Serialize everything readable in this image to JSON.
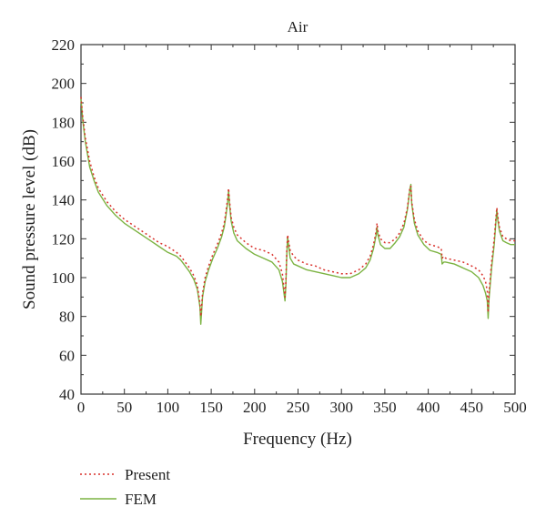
{
  "chart_data": {
    "type": "line",
    "title": "Air",
    "xlabel": "Frequency (Hz)",
    "ylabel": "Sound pressure level (dB)",
    "xlim": [
      0,
      500
    ],
    "ylim": [
      40,
      220
    ],
    "x_ticks": [
      0,
      50,
      100,
      150,
      200,
      250,
      300,
      350,
      400,
      450,
      500
    ],
    "y_ticks": [
      40,
      60,
      80,
      100,
      120,
      140,
      160,
      180,
      200,
      220
    ],
    "grid": false,
    "legend_position": "bottom-left, below plot",
    "series": [
      {
        "name": "Present",
        "style": "dotted",
        "color": "#d9302a",
        "points": [
          [
            0,
            193
          ],
          [
            2,
            183
          ],
          [
            5,
            172
          ],
          [
            10,
            160
          ],
          [
            15,
            152
          ],
          [
            20,
            146
          ],
          [
            30,
            139
          ],
          [
            40,
            134
          ],
          [
            50,
            130
          ],
          [
            60,
            127
          ],
          [
            70,
            124
          ],
          [
            80,
            121
          ],
          [
            90,
            118
          ],
          [
            100,
            116
          ],
          [
            110,
            113
          ],
          [
            115,
            111
          ],
          [
            120,
            108
          ],
          [
            125,
            105
          ],
          [
            130,
            101
          ],
          [
            134,
            96
          ],
          [
            137,
            87
          ],
          [
            138,
            80
          ],
          [
            139,
            85
          ],
          [
            140,
            92
          ],
          [
            143,
            100
          ],
          [
            147,
            106
          ],
          [
            152,
            112
          ],
          [
            157,
            117
          ],
          [
            162,
            123
          ],
          [
            165,
            128
          ],
          [
            167,
            134
          ],
          [
            169,
            141
          ],
          [
            170,
            146
          ],
          [
            171,
            140
          ],
          [
            173,
            131
          ],
          [
            176,
            126
          ],
          [
            180,
            122
          ],
          [
            190,
            118
          ],
          [
            200,
            115
          ],
          [
            210,
            114
          ],
          [
            220,
            112
          ],
          [
            228,
            108
          ],
          [
            232,
            102
          ],
          [
            235,
            90
          ],
          [
            236,
            98
          ],
          [
            237,
            113
          ],
          [
            238,
            122
          ],
          [
            239,
            119
          ],
          [
            241,
            114
          ],
          [
            245,
            111
          ],
          [
            250,
            109
          ],
          [
            260,
            107
          ],
          [
            270,
            106
          ],
          [
            280,
            104
          ],
          [
            290,
            103
          ],
          [
            300,
            102
          ],
          [
            310,
            102
          ],
          [
            320,
            104
          ],
          [
            328,
            107
          ],
          [
            333,
            111
          ],
          [
            337,
            117
          ],
          [
            340,
            124
          ],
          [
            341,
            128
          ],
          [
            342,
            124
          ],
          [
            345,
            120
          ],
          [
            350,
            118
          ],
          [
            356,
            118
          ],
          [
            362,
            120
          ],
          [
            367,
            123
          ],
          [
            372,
            128
          ],
          [
            376,
            136
          ],
          [
            379,
            147
          ],
          [
            380,
            147
          ],
          [
            381,
            139
          ],
          [
            384,
            130
          ],
          [
            388,
            124
          ],
          [
            395,
            119
          ],
          [
            402,
            117
          ],
          [
            410,
            116
          ],
          [
            415,
            115
          ],
          [
            416,
            110
          ],
          [
            418,
            111
          ],
          [
            420,
            110
          ],
          [
            430,
            109
          ],
          [
            440,
            108
          ],
          [
            450,
            106
          ],
          [
            458,
            104
          ],
          [
            463,
            101
          ],
          [
            466,
            98
          ],
          [
            468,
            93
          ],
          [
            469,
            82
          ],
          [
            470,
            92
          ],
          [
            473,
            108
          ],
          [
            476,
            120
          ],
          [
            478,
            131
          ],
          [
            479,
            136
          ],
          [
            480,
            132
          ],
          [
            482,
            126
          ],
          [
            486,
            121
          ],
          [
            490,
            120
          ],
          [
            495,
            119
          ],
          [
            500,
            119
          ]
        ]
      },
      {
        "name": "FEM",
        "style": "solid",
        "color": "#7cb342",
        "points": [
          [
            0,
            192
          ],
          [
            2,
            181
          ],
          [
            5,
            170
          ],
          [
            10,
            157
          ],
          [
            15,
            150
          ],
          [
            20,
            144
          ],
          [
            30,
            137
          ],
          [
            40,
            132
          ],
          [
            50,
            128
          ],
          [
            60,
            125
          ],
          [
            70,
            122
          ],
          [
            80,
            119
          ],
          [
            90,
            116
          ],
          [
            100,
            113
          ],
          [
            110,
            111
          ],
          [
            115,
            109
          ],
          [
            120,
            106
          ],
          [
            125,
            103
          ],
          [
            130,
            99
          ],
          [
            134,
            94
          ],
          [
            137,
            85
          ],
          [
            138,
            76
          ],
          [
            139,
            83
          ],
          [
            140,
            90
          ],
          [
            143,
            98
          ],
          [
            147,
            104
          ],
          [
            152,
            110
          ],
          [
            157,
            115
          ],
          [
            162,
            121
          ],
          [
            165,
            126
          ],
          [
            167,
            132
          ],
          [
            169,
            139
          ],
          [
            170,
            145
          ],
          [
            171,
            138
          ],
          [
            173,
            129
          ],
          [
            176,
            123
          ],
          [
            180,
            119
          ],
          [
            190,
            115
          ],
          [
            200,
            112
          ],
          [
            210,
            110
          ],
          [
            220,
            108
          ],
          [
            228,
            104
          ],
          [
            232,
            98
          ],
          [
            235,
            88
          ],
          [
            236,
            96
          ],
          [
            237,
            111
          ],
          [
            238,
            121
          ],
          [
            239,
            117
          ],
          [
            241,
            110
          ],
          [
            245,
            107
          ],
          [
            250,
            106
          ],
          [
            260,
            104
          ],
          [
            270,
            103
          ],
          [
            280,
            102
          ],
          [
            290,
            101
          ],
          [
            300,
            100
          ],
          [
            310,
            100
          ],
          [
            320,
            102
          ],
          [
            328,
            105
          ],
          [
            333,
            109
          ],
          [
            337,
            115
          ],
          [
            340,
            122
          ],
          [
            341,
            126
          ],
          [
            342,
            122
          ],
          [
            345,
            117
          ],
          [
            350,
            115
          ],
          [
            356,
            115
          ],
          [
            362,
            118
          ],
          [
            367,
            121
          ],
          [
            372,
            126
          ],
          [
            376,
            135
          ],
          [
            379,
            146
          ],
          [
            380,
            148
          ],
          [
            381,
            138
          ],
          [
            384,
            128
          ],
          [
            388,
            122
          ],
          [
            395,
            117
          ],
          [
            402,
            114
          ],
          [
            410,
            113
          ],
          [
            415,
            112
          ],
          [
            416,
            107
          ],
          [
            418,
            108
          ],
          [
            420,
            108
          ],
          [
            430,
            107
          ],
          [
            440,
            105
          ],
          [
            450,
            103
          ],
          [
            458,
            100
          ],
          [
            463,
            96
          ],
          [
            466,
            92
          ],
          [
            468,
            88
          ],
          [
            469,
            79
          ],
          [
            470,
            89
          ],
          [
            473,
            105
          ],
          [
            476,
            117
          ],
          [
            478,
            129
          ],
          [
            479,
            135
          ],
          [
            480,
            130
          ],
          [
            482,
            124
          ],
          [
            486,
            119
          ],
          [
            490,
            118
          ],
          [
            495,
            117
          ],
          [
            500,
            117
          ]
        ]
      }
    ]
  }
}
